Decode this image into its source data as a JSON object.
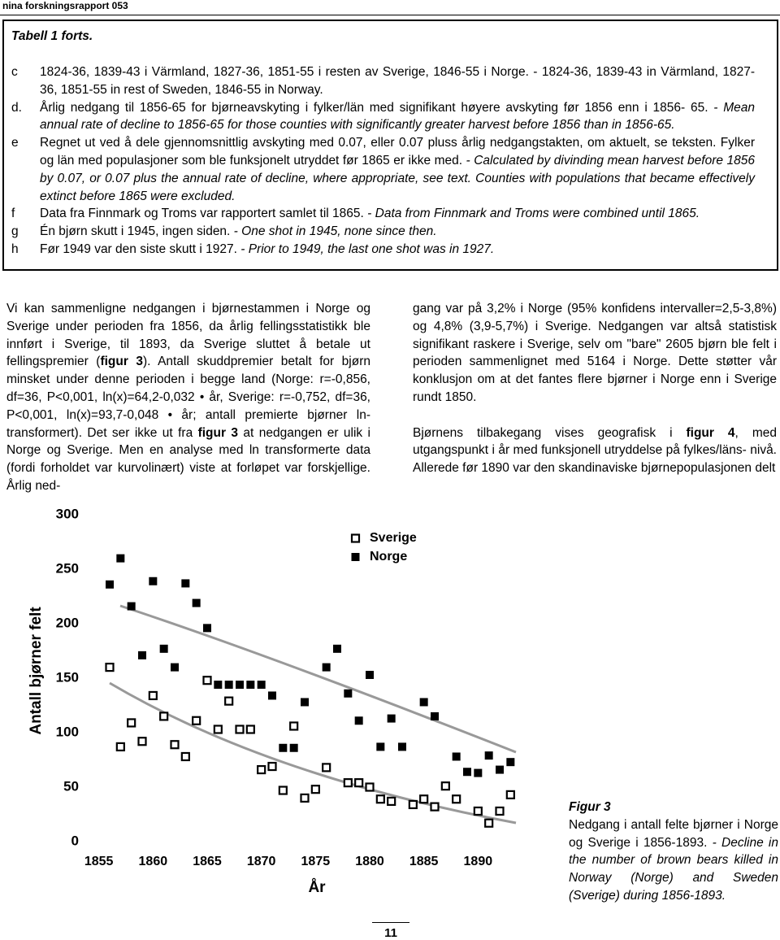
{
  "header": {
    "title": "nina forskningsrapport 053"
  },
  "table_notes": {
    "title": "Tabell 1 forts.",
    "notes": [
      {
        "letter": "c",
        "text": "1824-36, 1839-43 i Värmland, 1827-36, 1851-55 i resten av Sverige, 1846-55 i Norge. - 1824-36, 1839-43 in Värmland, 1827-36, 1851-55 in rest of Sweden, 1846-55 in Norway.",
        "english": null
      },
      {
        "letter": "d.",
        "text": "Årlig nedgang til 1856-65 for bjørneavskyting i fylker/län med signifikant høyere avskyting før 1856 enn i 1856- 65. ",
        "english": "- Mean annual rate of decline to 1856-65 for those counties with significantly greater harvest before 1856 than in 1856-65."
      },
      {
        "letter": "e",
        "text": "Regnet ut ved å dele gjennomsnittlig avskyting med 0.07, eller 0.07 pluss årlig nedgangstakten, om aktuelt, se teksten. Fylker og län med populasjoner som ble funksjonelt utryddet før 1865 er ikke med. ",
        "english": "- Calculated by divinding mean harvest before 1856 by 0.07, or 0.07 plus the annual rate of decline, where appropriate, see text. Counties with populations that became effectively extinct before 1865 were excluded."
      },
      {
        "letter": "f",
        "text": "Data fra Finnmark og Troms var rapportert samlet til 1865. ",
        "english": "- Data from Finnmark and Troms were combined  until 1865."
      },
      {
        "letter": "g",
        "text": "Én bjørn skutt i 1945, ingen siden. ",
        "english": "- One shot in 1945, none since then."
      },
      {
        "letter": "h",
        "text": "Før 1949 var den siste skutt i 1927. ",
        "english": "- Prior to 1949, the last one shot was in 1927."
      }
    ]
  },
  "body": {
    "col1": [
      "Vi kan sammenligne nedgangen i bjørnestammen i Norge og Sverige under perioden fra 1856, da årlig fellingsstatistikk ble innført i Sverige, til 1893, da Sverige sluttet å betale ut fellingspremier (",
      "figur 3",
      "). Antall skuddpremier betalt for bjørn minsket under denne perioden i begge land (Norge: r=-0,856, df=36, P<0,001, ln(x)=64,2-0,032 • år, Sverige: r=-0,752, df=36, P<0,001, ln(x)=93,7-0,048 • år; antall premierte bjørner ln-transformert). Det ser ikke ut fra ",
      "figur 3",
      " at nedgangen er ulik i Norge og Sverige. Men en analyse med ln transformerte data (fordi forholdet var kurvolinært) viste at forløpet var forskjellige. Årlig ned-"
    ],
    "col2_p1": "gang var på 3,2% i Norge (95% konfidens intervaller=2,5-3,8%) og 4,8% (3,9-5,7%) i Sverige. Nedgangen var altså statistisk signifikant raskere i Sverige, selv om \"bare\" 2605 bjørn ble felt i perioden sammenlignet med 5164 i Norge. Dette støtter vår konklusjon om at det fantes flere bjørner i Norge enn i Sverige rundt 1850.",
    "col2_p2": [
      "Bjørnens tilbakegang vises geografisk i ",
      "figur 4",
      ", med utgangspunkt i år med funksjonell utryddelse på fylkes/läns- nivå. Allerede før 1890 var den skandinaviske bjørnepopulasjonen delt"
    ]
  },
  "chart_data": {
    "type": "scatter",
    "y_label": "Antall bjørner felt",
    "x_label": "År",
    "x": [
      1856,
      1857,
      1858,
      1859,
      1860,
      1861,
      1862,
      1863,
      1864,
      1865,
      1866,
      1867,
      1868,
      1869,
      1870,
      1871,
      1872,
      1873,
      1874,
      1875,
      1876,
      1877,
      1878,
      1879,
      1880,
      1881,
      1882,
      1883,
      1884,
      1885,
      1886,
      1887,
      1888,
      1889,
      1890,
      1891,
      1892,
      1893
    ],
    "series": [
      {
        "name": "Sverige",
        "color": "#000000",
        "marker": "hollow",
        "values": [
          160,
          87,
          109,
          92,
          134,
          115,
          89,
          78,
          111,
          148,
          103,
          129,
          103,
          103,
          66,
          69,
          47,
          106,
          40,
          48,
          68,
          null,
          54,
          54,
          50,
          39,
          37,
          null,
          34,
          39,
          32,
          51,
          39,
          null,
          28,
          17,
          28,
          43
        ]
      },
      {
        "name": "Norge",
        "color": "#000000",
        "marker": "filled",
        "values": [
          236,
          260,
          216,
          171,
          239,
          177,
          160,
          237,
          219,
          196,
          144,
          144,
          144,
          144,
          144,
          134,
          86,
          86,
          128,
          null,
          160,
          177,
          136,
          111,
          153,
          87,
          113,
          87,
          null,
          128,
          115,
          null,
          78,
          64,
          63,
          79,
          66,
          73
        ]
      }
    ],
    "xlim": [
      1853,
      1895
    ],
    "xticks": [
      1855,
      1860,
      1865,
      1870,
      1875,
      1880,
      1885,
      1890
    ],
    "ylim": [
      0,
      300
    ],
    "yticks": [
      0,
      50,
      100,
      150,
      200,
      250,
      300
    ],
    "legend": "top-right",
    "grid": false
  },
  "caption": {
    "label": "Figur 3",
    "text": "Nedgang i antall felte bjørner i Norge og Sverige i 1856-1893. ",
    "english": "- Decline in the number of brown bears killed in Norway (Norge) and Sweden (Sverige) during 1856-1893."
  },
  "page_number": "11"
}
